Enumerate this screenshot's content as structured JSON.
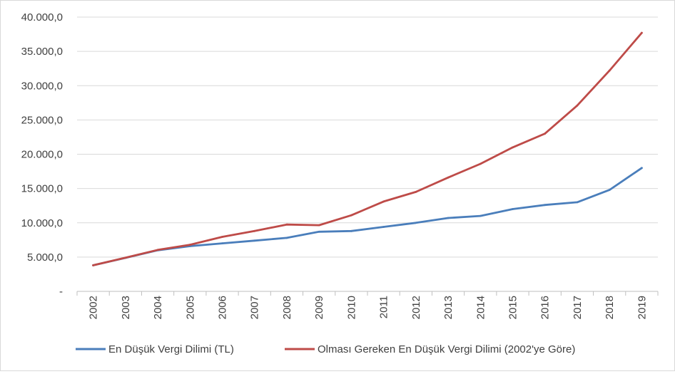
{
  "chart_data": {
    "type": "line",
    "categories": [
      "2002",
      "2003",
      "2004",
      "2005",
      "2006",
      "2007",
      "2008",
      "2009",
      "2010",
      "2011",
      "2012",
      "2013",
      "2014",
      "2015",
      "2016",
      "2017",
      "2018",
      "2019"
    ],
    "ylim": [
      0,
      40000
    ],
    "yticks": [
      0,
      5000,
      10000,
      15000,
      20000,
      25000,
      30000,
      35000,
      40000
    ],
    "ytick_labels": [
      "-",
      "5.000,0",
      "10.000,0",
      "15.000,0",
      "20.000,0",
      "25.000,0",
      "30.000,0",
      "35.000,0",
      "40.000,0"
    ],
    "grid": "horizontal",
    "legend_position": "bottom",
    "series": [
      {
        "name": "En Düşük Vergi Dilimi (TL)",
        "color": "#4a7ebb",
        "values": [
          3800,
          4880,
          6000,
          6600,
          7000,
          7400,
          7800,
          8700,
          8800,
          9400,
          10000,
          10700,
          11000,
          12000,
          12600,
          13000,
          14800,
          18000
        ]
      },
      {
        "name": "Olması Gereken En Düşük Vergi Dilimi (2002'ye Göre)",
        "color": "#be4b48",
        "values": [
          3800,
          4900,
          6050,
          6800,
          7950,
          8800,
          9750,
          9650,
          11100,
          13100,
          14500,
          16600,
          18600,
          21000,
          23000,
          27100,
          32200,
          37700
        ]
      }
    ]
  }
}
